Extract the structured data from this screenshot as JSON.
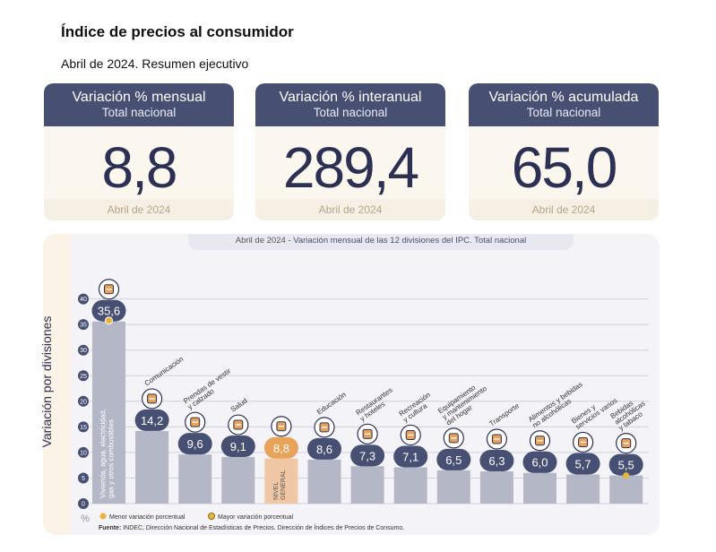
{
  "header": {
    "title": "Índice de precios al consumidor",
    "subtitle": "Abril de 2024. Resumen ejecutivo"
  },
  "cards": [
    {
      "title": "Variación % mensual",
      "subtitle": "Total nacional",
      "value": "8,8",
      "footer": "Abril de 2024"
    },
    {
      "title": "Variación % interanual",
      "subtitle": "Total nacional",
      "value": "289,4",
      "footer": "Abril de 2024"
    },
    {
      "title": "Variación % acumulada",
      "subtitle": "Total nacional",
      "value": "65,0",
      "footer": "Abril de 2024"
    }
  ],
  "panel": {
    "title_prefix": "Abril de 2024",
    "title_sep": " - ",
    "title_main": "Variación mensual de las 12 divisiones del IPC. Total nacional"
  },
  "legend": {
    "min_label": "Menor variación porcentual",
    "max_label": "Mayor variación porcentual"
  },
  "source": {
    "label": "Fuente:",
    "text": "INDEC, Dirección Nacional de Estadísticas de Precios. Dirección de Índices de Precios de Consumo."
  },
  "colors": {
    "bar": "#b3b7c6",
    "bar_general": "#efc7a4",
    "badge": "#474f72",
    "badge_general": "#e7a35a",
    "accent_dot": "#e9b43a",
    "card_header": "#474f72"
  },
  "chart_data": {
    "type": "bar",
    "title": "Variación mensual de las 12 divisiones del IPC. Total nacional",
    "ylabel": "Variación por divisiones",
    "yunit": "%",
    "ylim": [
      0,
      40
    ],
    "yticks": [
      0,
      5,
      10,
      15,
      20,
      25,
      30,
      35,
      40
    ],
    "grid": true,
    "categories": [
      "Vivienda, agua, electricidad, gas y otros combustibles",
      "Comunicación",
      "Prendas de vestir y calzado",
      "Salud",
      "NIVEL GENERAL",
      "Educación",
      "Restaurantes y hoteles",
      "Recreación y cultura",
      "Equipamiento y mantenimiento del hogar",
      "Transporte",
      "Alimentos y bebidas no alcohólicas",
      "Bienes y servicios varios",
      "Bebidas alcohólicas y tabaco"
    ],
    "values": [
      35.6,
      14.2,
      9.6,
      9.1,
      8.8,
      8.6,
      7.3,
      7.1,
      6.5,
      6.3,
      6.0,
      5.7,
      5.5
    ],
    "labels": [
      "35,6",
      "14,2",
      "9,6",
      "9,1",
      "8,8",
      "8,6",
      "7,3",
      "7,1",
      "6,5",
      "6,3",
      "6,0",
      "5,7",
      "5,5"
    ],
    "label_lines": [
      [
        "Vivienda, agua, electricidad,",
        "gas y otros combustibles"
      ],
      [
        "Comunicación"
      ],
      [
        "Prendas de vestir",
        "y calzado"
      ],
      [
        "Salud"
      ],
      [
        "NIVEL",
        "GENERAL"
      ],
      [
        "Educación"
      ],
      [
        "Restaurantes",
        "y hoteles"
      ],
      [
        "Recreación",
        "y cultura"
      ],
      [
        "Equipamiento",
        "y mantenimiento",
        "del hogar"
      ],
      [
        "Transporte"
      ],
      [
        "Alimentos y bebidas",
        "no alcohólicas"
      ],
      [
        "Bienes y",
        "servicios varios"
      ],
      [
        "Bebidas",
        "alcohólicas",
        "y tabaco"
      ]
    ],
    "icons": [
      "tools-bulb-icon",
      "phone-icon",
      "shirt-icon",
      "medical-kit-icon",
      "shopping-basket-icon",
      "books-icon",
      "restaurant-icon",
      "beach-umbrella-icon",
      "washing-machine-icon",
      "bus-icon",
      "chicken-icon",
      "scissors-comb-icon",
      "cigarette-glass-icon"
    ],
    "highlight": "NIVEL GENERAL",
    "max_marker": "Vivienda, agua, electricidad, gas y otros combustibles",
    "min_marker": "Bebidas alcohólicas y tabaco"
  }
}
